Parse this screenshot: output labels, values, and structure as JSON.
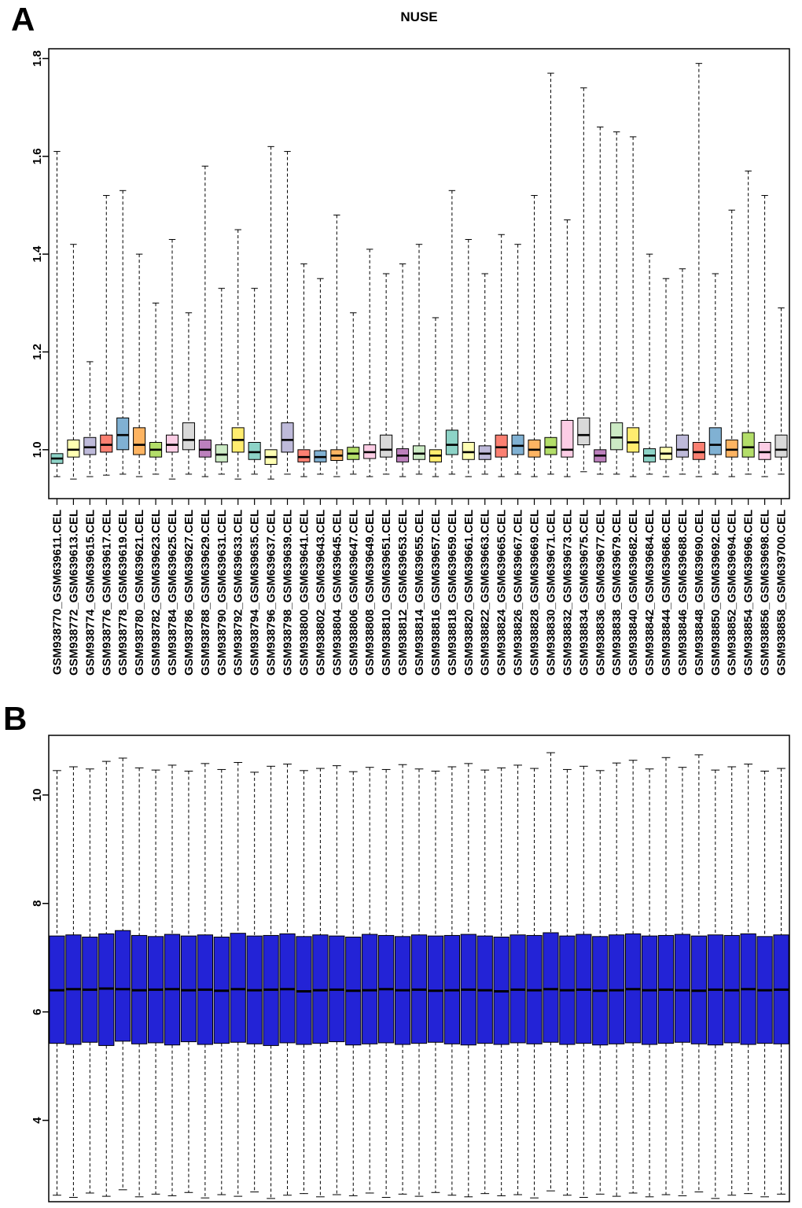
{
  "panels": {
    "a": {
      "label": "A"
    },
    "b": {
      "label": "B"
    }
  },
  "chart_data": [
    {
      "type": "boxplot",
      "panel": "A",
      "title": "NUSE",
      "ylabel": "",
      "xlabel": "",
      "ylim": [
        0.9,
        1.82
      ],
      "yticks": [
        "1.0",
        "1.2",
        "1.4",
        "1.6",
        "1.8"
      ],
      "grid": false,
      "legend": "none",
      "palette": [
        "#8DD3C7",
        "#FFFFB3",
        "#BEBADA",
        "#FB8072",
        "#80B1D3",
        "#FDB462",
        "#B3DE69",
        "#FCCDE5",
        "#D9D9D9",
        "#BC80BD",
        "#CCEBC5",
        "#FFED6F"
      ],
      "categories": [
        "GSM938770_GSM639611.CEL",
        "GSM938772_GSM639613.CEL",
        "GSM938774_GSM639615.CEL",
        "GSM938776_GSM639617.CEL",
        "GSM938778_GSM639619.CEL",
        "GSM938780_GSM639621.CEL",
        "GSM938782_GSM639623.CEL",
        "GSM938784_GSM639625.CEL",
        "GSM938786_GSM639627.CEL",
        "GSM938788_GSM639629.CEL",
        "GSM938790_GSM639631.CEL",
        "GSM938792_GSM639633.CEL",
        "GSM938794_GSM639635.CEL",
        "GSM938796_GSM639637.CEL",
        "GSM938798_GSM639639.CEL",
        "GSM938800_GSM639641.CEL",
        "GSM938802_GSM639643.CEL",
        "GSM938804_GSM639645.CEL",
        "GSM938806_GSM639647.CEL",
        "GSM938808_GSM639649.CEL",
        "GSM938810_GSM639651.CEL",
        "GSM938812_GSM639653.CEL",
        "GSM938814_GSM639655.CEL",
        "GSM938816_GSM639657.CEL",
        "GSM938818_GSM639659.CEL",
        "GSM938820_GSM639661.CEL",
        "GSM938822_GSM639663.CEL",
        "GSM938824_GSM639665.CEL",
        "GSM938826_GSM639667.CEL",
        "GSM938828_GSM639669.CEL",
        "GSM938830_GSM639671.CEL",
        "GSM938832_GSM639673.CEL",
        "GSM938834_GSM639675.CEL",
        "GSM938836_GSM639677.CEL",
        "GSM938838_GSM639679.CEL",
        "GSM938840_GSM639682.CEL",
        "GSM938842_GSM639684.CEL",
        "GSM938844_GSM639686.CEL",
        "GSM938846_GSM639688.CEL",
        "GSM938848_GSM639690.CEL",
        "GSM938850_GSM639692.CEL",
        "GSM938852_GSM639694.CEL",
        "GSM938854_GSM639696.CEL",
        "GSM938856_GSM639698.CEL",
        "GSM938858_GSM639700.CEL"
      ],
      "box_stats_order": [
        "low_whisker",
        "q1",
        "median",
        "q3",
        "high_whisker"
      ],
      "boxes": [
        [
          0.945,
          0.972,
          0.982,
          0.992,
          1.61
        ],
        [
          0.94,
          0.985,
          1.0,
          1.02,
          1.42
        ],
        [
          0.945,
          0.99,
          1.005,
          1.025,
          1.18
        ],
        [
          0.948,
          0.995,
          1.01,
          1.03,
          1.52
        ],
        [
          0.95,
          1.0,
          1.03,
          1.065,
          1.53
        ],
        [
          0.945,
          0.99,
          1.01,
          1.045,
          1.4
        ],
        [
          0.95,
          0.985,
          1.0,
          1.015,
          1.3
        ],
        [
          0.94,
          0.995,
          1.01,
          1.03,
          1.43
        ],
        [
          0.95,
          1.0,
          1.02,
          1.055,
          1.28
        ],
        [
          0.945,
          0.985,
          1.0,
          1.02,
          1.58
        ],
        [
          0.95,
          0.975,
          0.99,
          1.01,
          1.33
        ],
        [
          0.94,
          0.995,
          1.02,
          1.045,
          1.45
        ],
        [
          0.95,
          0.98,
          0.995,
          1.015,
          1.33
        ],
        [
          0.94,
          0.97,
          0.985,
          1.0,
          1.62
        ],
        [
          0.95,
          0.995,
          1.02,
          1.055,
          1.61
        ],
        [
          0.945,
          0.975,
          0.985,
          1.0,
          1.38
        ],
        [
          0.95,
          0.975,
          0.985,
          0.998,
          1.35
        ],
        [
          0.945,
          0.978,
          0.988,
          1.0,
          1.48
        ],
        [
          0.95,
          0.98,
          0.992,
          1.005,
          1.28
        ],
        [
          0.945,
          0.982,
          0.995,
          1.01,
          1.41
        ],
        [
          0.95,
          0.985,
          1.0,
          1.03,
          1.36
        ],
        [
          0.945,
          0.975,
          0.988,
          1.002,
          1.38
        ],
        [
          0.95,
          0.98,
          0.992,
          1.008,
          1.42
        ],
        [
          0.945,
          0.975,
          0.988,
          1.0,
          1.27
        ],
        [
          0.95,
          0.99,
          1.01,
          1.04,
          1.53
        ],
        [
          0.945,
          0.98,
          0.995,
          1.015,
          1.43
        ],
        [
          0.95,
          0.98,
          0.992,
          1.008,
          1.36
        ],
        [
          0.945,
          0.985,
          1.005,
          1.03,
          1.44
        ],
        [
          0.95,
          0.99,
          1.008,
          1.03,
          1.42
        ],
        [
          0.945,
          0.985,
          1.0,
          1.02,
          1.52
        ],
        [
          0.95,
          0.99,
          1.005,
          1.025,
          1.77
        ],
        [
          0.945,
          0.985,
          1.0,
          1.06,
          1.47
        ],
        [
          0.955,
          1.01,
          1.03,
          1.065,
          1.74
        ],
        [
          0.95,
          0.975,
          0.988,
          1.0,
          1.66
        ],
        [
          0.95,
          1.0,
          1.025,
          1.055,
          1.65
        ],
        [
          0.945,
          0.995,
          1.015,
          1.045,
          1.64
        ],
        [
          0.95,
          0.975,
          0.988,
          1.002,
          1.4
        ],
        [
          0.945,
          0.98,
          0.992,
          1.005,
          1.35
        ],
        [
          0.95,
          0.985,
          1.0,
          1.03,
          1.37
        ],
        [
          0.945,
          0.98,
          0.995,
          1.015,
          1.79
        ],
        [
          0.95,
          0.99,
          1.01,
          1.045,
          1.36
        ],
        [
          0.945,
          0.985,
          1.0,
          1.02,
          1.49
        ],
        [
          0.95,
          0.985,
          1.005,
          1.035,
          1.57
        ],
        [
          0.945,
          0.98,
          0.995,
          1.015,
          1.52
        ],
        [
          0.95,
          0.985,
          1.0,
          1.03,
          1.29
        ]
      ]
    },
    {
      "type": "boxplot",
      "panel": "B",
      "title": "",
      "ylabel": "",
      "xlabel": "",
      "ylim": [
        2.5,
        11.1
      ],
      "yticks": [
        "4",
        "6",
        "8",
        "10"
      ],
      "grid": false,
      "legend": "none",
      "box_color": "#2323D6",
      "box_stats_order": [
        "low_whisker",
        "q1",
        "median",
        "q3",
        "high_whisker"
      ],
      "boxes": [
        [
          2.62,
          5.42,
          6.4,
          7.4,
          10.45
        ],
        [
          2.58,
          5.4,
          6.42,
          7.42,
          10.52
        ],
        [
          2.66,
          5.44,
          6.41,
          7.38,
          10.48
        ],
        [
          2.6,
          5.38,
          6.43,
          7.44,
          10.62
        ],
        [
          2.72,
          5.46,
          6.42,
          7.5,
          10.68
        ],
        [
          2.59,
          5.41,
          6.4,
          7.41,
          10.5
        ],
        [
          2.64,
          5.43,
          6.41,
          7.39,
          10.46
        ],
        [
          2.61,
          5.39,
          6.42,
          7.43,
          10.55
        ],
        [
          2.67,
          5.45,
          6.4,
          7.4,
          10.44
        ],
        [
          2.57,
          5.4,
          6.41,
          7.42,
          10.58
        ],
        [
          2.63,
          5.42,
          6.39,
          7.38,
          10.47
        ],
        [
          2.6,
          5.44,
          6.42,
          7.45,
          10.6
        ],
        [
          2.68,
          5.41,
          6.4,
          7.4,
          10.42
        ],
        [
          2.56,
          5.38,
          6.41,
          7.41,
          10.53
        ],
        [
          2.62,
          5.43,
          6.42,
          7.44,
          10.57
        ],
        [
          2.65,
          5.4,
          6.38,
          7.39,
          10.45
        ],
        [
          2.59,
          5.42,
          6.4,
          7.42,
          10.49
        ],
        [
          2.63,
          5.45,
          6.41,
          7.4,
          10.54
        ],
        [
          2.61,
          5.39,
          6.39,
          7.38,
          10.43
        ],
        [
          2.66,
          5.41,
          6.4,
          7.43,
          10.51
        ],
        [
          2.58,
          5.43,
          6.42,
          7.41,
          10.47
        ],
        [
          2.64,
          5.4,
          6.4,
          7.39,
          10.56
        ],
        [
          2.6,
          5.42,
          6.41,
          7.42,
          10.48
        ],
        [
          2.67,
          5.44,
          6.39,
          7.4,
          10.44
        ],
        [
          2.62,
          5.41,
          6.4,
          7.41,
          10.52
        ],
        [
          2.59,
          5.39,
          6.41,
          7.43,
          10.58
        ],
        [
          2.65,
          5.42,
          6.4,
          7.4,
          10.46
        ],
        [
          2.61,
          5.4,
          6.38,
          7.38,
          10.5
        ],
        [
          2.63,
          5.43,
          6.41,
          7.42,
          10.55
        ],
        [
          2.57,
          5.41,
          6.4,
          7.41,
          10.49
        ],
        [
          2.7,
          5.44,
          6.42,
          7.46,
          10.78
        ],
        [
          2.62,
          5.4,
          6.4,
          7.4,
          10.47
        ],
        [
          2.58,
          5.42,
          6.41,
          7.43,
          10.53
        ],
        [
          2.64,
          5.39,
          6.39,
          7.39,
          10.45
        ],
        [
          2.6,
          5.41,
          6.4,
          7.42,
          10.59
        ],
        [
          2.66,
          5.43,
          6.42,
          7.44,
          10.64
        ],
        [
          2.59,
          5.4,
          6.4,
          7.4,
          10.48
        ],
        [
          2.63,
          5.42,
          6.41,
          7.41,
          10.69
        ],
        [
          2.61,
          5.44,
          6.4,
          7.43,
          10.51
        ],
        [
          2.68,
          5.41,
          6.39,
          7.4,
          10.74
        ],
        [
          2.56,
          5.39,
          6.41,
          7.42,
          10.46
        ],
        [
          2.62,
          5.43,
          6.4,
          7.41,
          10.52
        ],
        [
          2.65,
          5.4,
          6.42,
          7.44,
          10.57
        ],
        [
          2.59,
          5.42,
          6.4,
          7.39,
          10.44
        ],
        [
          2.64,
          5.41,
          6.41,
          7.42,
          10.49
        ]
      ]
    }
  ]
}
